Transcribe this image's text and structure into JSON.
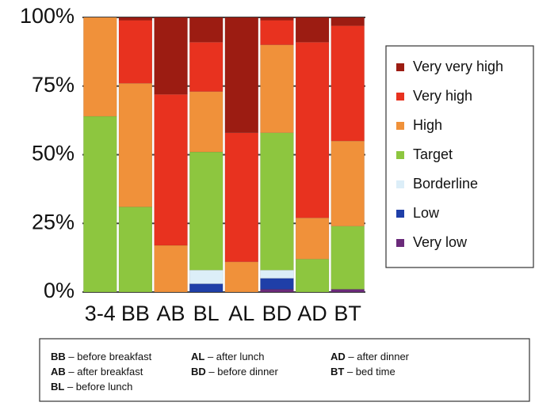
{
  "chart_data": {
    "type": "stacked_bar",
    "categories": [
      "3-4",
      "BB",
      "AB",
      "BL",
      "AL",
      "BD",
      "AD",
      "BT"
    ],
    "series": [
      {
        "name": "Very low",
        "color": "#6b2a7a",
        "values": [
          0,
          0,
          0,
          0,
          0,
          1,
          0,
          1
        ]
      },
      {
        "name": "Low",
        "color": "#1f3fa8",
        "values": [
          0,
          0,
          0,
          3,
          0,
          4,
          0,
          0
        ]
      },
      {
        "name": "Borderline",
        "color": "#dceef8",
        "values": [
          0,
          0,
          0,
          5,
          0,
          3,
          0,
          0
        ]
      },
      {
        "name": "Target",
        "color": "#8dc63f",
        "values": [
          64,
          31,
          0,
          43,
          0,
          50,
          12,
          23
        ]
      },
      {
        "name": "High",
        "color": "#f0913a",
        "values": [
          36,
          45,
          17,
          22,
          11,
          32,
          15,
          31
        ]
      },
      {
        "name": "Very high",
        "color": "#e8321f",
        "values": [
          0,
          23,
          55,
          18,
          47,
          9,
          64,
          42
        ]
      },
      {
        "name": "Very very high",
        "color": "#9c1c12",
        "values": [
          0,
          1,
          28,
          9,
          42,
          1,
          9,
          3
        ]
      }
    ],
    "ylim": [
      0,
      100
    ],
    "yticks": [
      {
        "value": 0,
        "label": "0%"
      },
      {
        "value": 25,
        "label": "25%"
      },
      {
        "value": 50,
        "label": "50%"
      },
      {
        "value": 75,
        "label": "75%"
      },
      {
        "value": 100,
        "label": "100%"
      }
    ],
    "grid": true,
    "legend": "right",
    "footnote": [
      {
        "abbr": "BB",
        "desc": "– before breakfast"
      },
      {
        "abbr": "AL",
        "desc": "– after lunch"
      },
      {
        "abbr": "AD",
        "desc": "– after dinner"
      },
      {
        "abbr": "AB",
        "desc": "– after breakfast"
      },
      {
        "abbr": "BD",
        "desc": "– before dinner"
      },
      {
        "abbr": "BT",
        "desc": "– bed time"
      },
      {
        "abbr": "BL",
        "desc": "– before lunch"
      }
    ]
  }
}
